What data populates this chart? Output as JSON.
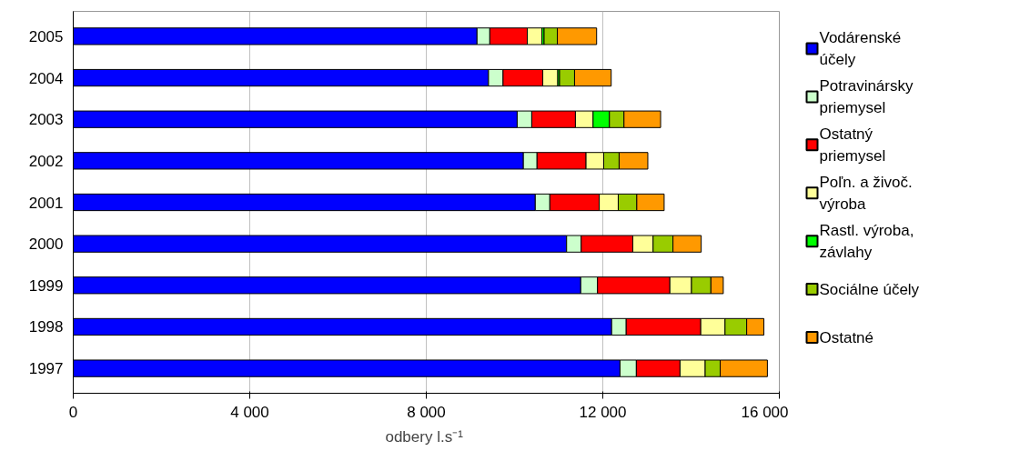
{
  "chart_data": {
    "type": "bar",
    "orientation": "horizontal",
    "stacked": true,
    "categories": [
      "2005",
      "2004",
      "2003",
      "2002",
      "2001",
      "2000",
      "1999",
      "1998",
      "1997"
    ],
    "xlabel": "odbery  l.s⁻¹",
    "xlim": [
      0,
      16000
    ],
    "xticks": [
      0,
      {
        "value": 4000,
        "label": "4 000"
      },
      {
        "value": 8000,
        "label": "8 000"
      },
      {
        "value": 12000,
        "label": "12 000"
      },
      {
        "value": 16000,
        "label": "16 000"
      }
    ],
    "grid": "x",
    "legend": "right",
    "series": [
      {
        "name": "Vodárenské účely",
        "color": "#0000ff",
        "values": [
          9150,
          9410,
          10060,
          10200,
          10470,
          11180,
          11500,
          12200,
          12390
        ]
      },
      {
        "name": "Potravinársky priemysel",
        "color": "#ccffcc",
        "values": [
          290,
          330,
          330,
          310,
          330,
          330,
          380,
          330,
          370
        ]
      },
      {
        "name": "Ostatný priemysel",
        "color": "#ff0000",
        "values": [
          850,
          900,
          990,
          1110,
          1120,
          1170,
          1640,
          1690,
          990
        ]
      },
      {
        "name": "Poľn. a živoč. výroba",
        "color": "#ffff99",
        "values": [
          330,
          340,
          400,
          400,
          430,
          460,
          490,
          550,
          570
        ]
      },
      {
        "name": "Rastl. výroba, závlahy",
        "color": "#00ff00",
        "values": [
          50,
          40,
          370,
          null,
          null,
          null,
          null,
          null,
          null
        ]
      },
      {
        "name": "Sociálne účely",
        "color": "#99cc00",
        "values": [
          300,
          340,
          330,
          350,
          420,
          450,
          440,
          490,
          340
        ]
      },
      {
        "name": "Ostatné",
        "color": "#ff9900",
        "values": [
          890,
          830,
          830,
          650,
          620,
          640,
          280,
          390,
          1070
        ]
      }
    ]
  }
}
